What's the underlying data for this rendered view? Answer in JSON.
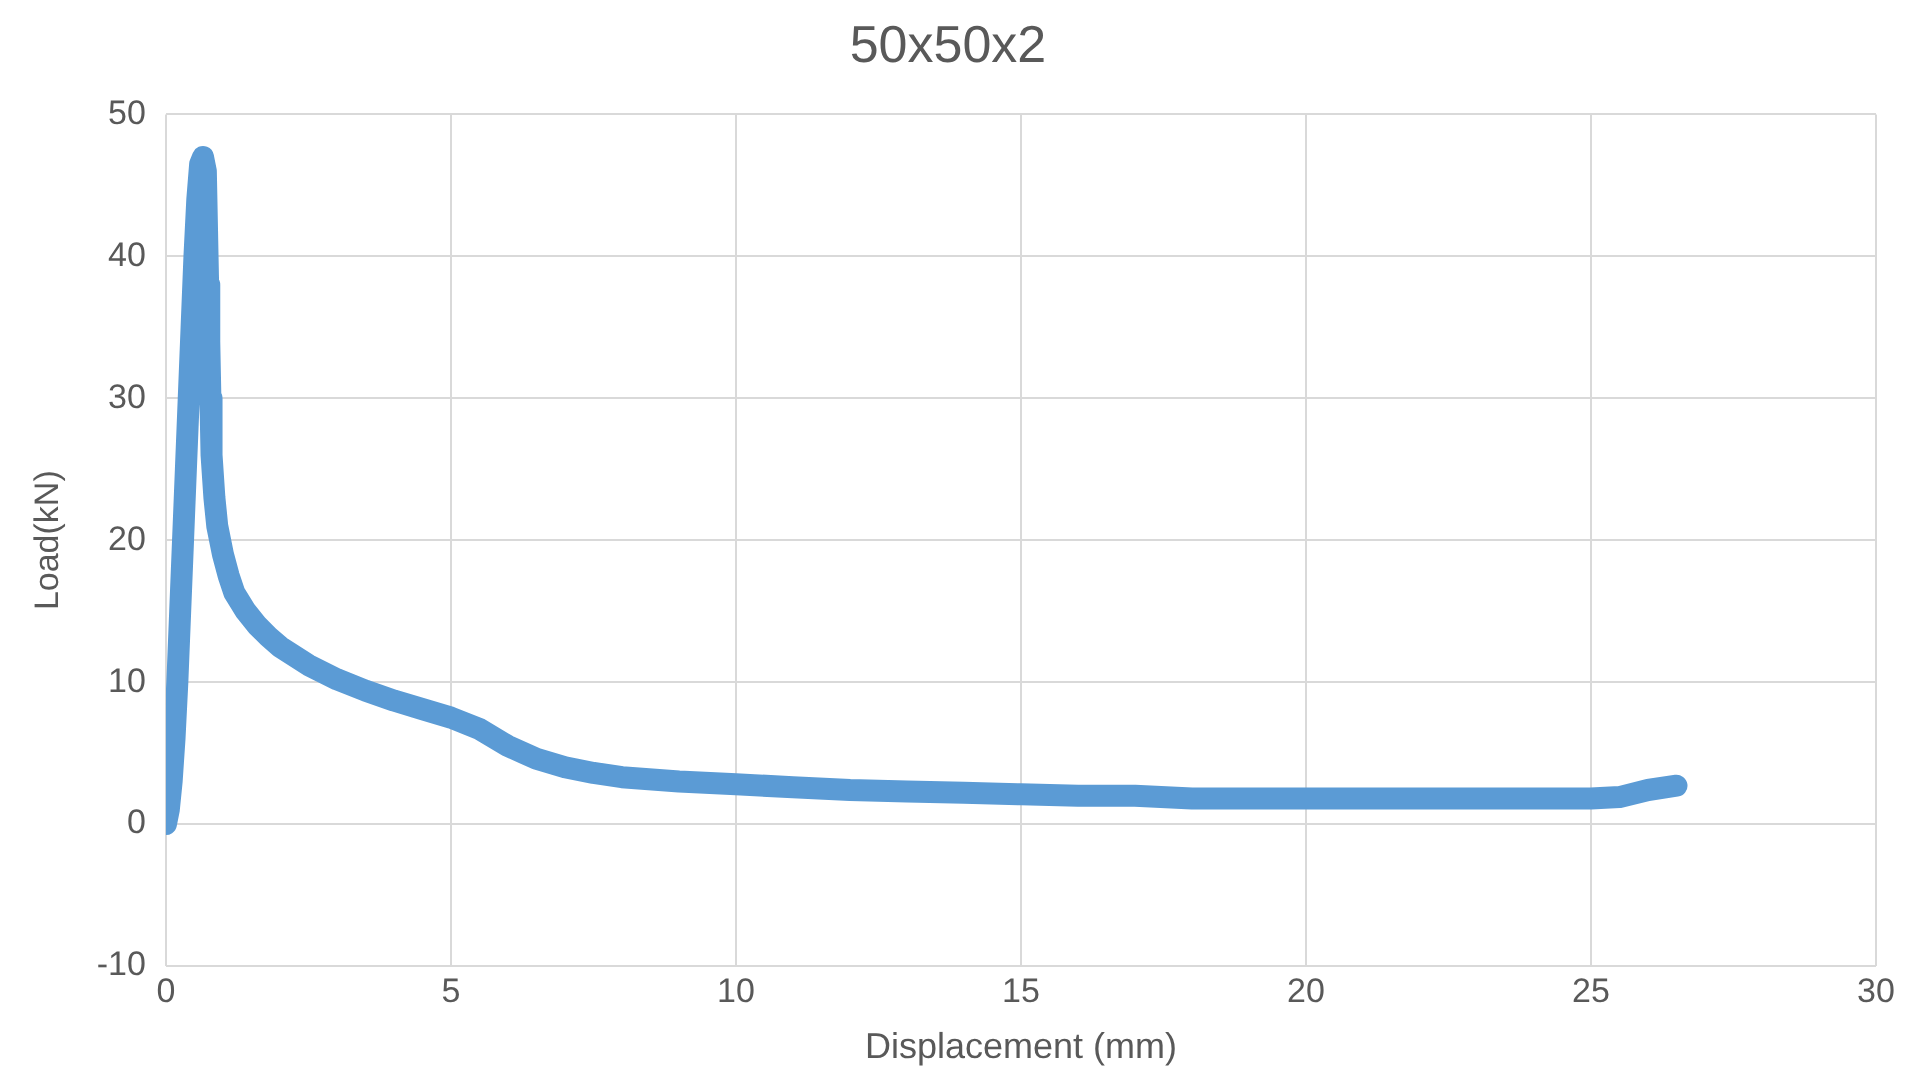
{
  "chart_data": {
    "type": "line",
    "title": "50x50x2",
    "xlabel": "Displacement (mm)",
    "ylabel": "Load(kN)",
    "xlim": [
      0,
      30
    ],
    "xticks": [
      0,
      5,
      10,
      15,
      20,
      25,
      30
    ],
    "ylim": [
      -10,
      50
    ],
    "yticks": [
      -10,
      0,
      10,
      20,
      30,
      40,
      50
    ],
    "grid": true,
    "marker": "none",
    "line_style": "solid",
    "legend": false,
    "series": [
      {
        "color": "#5b9bd5",
        "x": [
          0,
          0.05,
          0.1,
          0.15,
          0.2,
          0.25,
          0.3,
          0.35,
          0.4,
          0.45,
          0.5,
          0.55,
          0.6,
          0.65,
          0.7,
          0.72,
          0.74,
          0.76,
          0.78,
          0.8,
          0.85,
          0.9,
          1.0,
          1.1,
          1.2,
          1.4,
          1.6,
          1.8,
          2,
          2.5,
          3,
          3.5,
          4,
          4.5,
          5,
          5.5,
          6,
          6.5,
          7,
          7.5,
          8,
          9,
          10,
          11,
          12,
          13,
          14,
          15,
          16,
          17,
          18,
          19,
          20,
          21,
          22,
          23,
          24,
          25,
          25.5,
          26,
          26.5
        ],
        "values": [
          0,
          1,
          3,
          6,
          10,
          15,
          20,
          25,
          30,
          35,
          40,
          44,
          46.5,
          47,
          46,
          42,
          38,
          34,
          30,
          26,
          23,
          21,
          19,
          17.5,
          16.3,
          15,
          14,
          13.2,
          12.5,
          11.2,
          10.2,
          9.4,
          8.7,
          8.1,
          7.5,
          6.7,
          5.5,
          4.6,
          4,
          3.6,
          3.3,
          3,
          2.8,
          2.6,
          2.4,
          2.3,
          2.2,
          2.1,
          2,
          2,
          1.8,
          1.8,
          1.8,
          1.8,
          1.8,
          1.8,
          1.8,
          1.8,
          1.9,
          2.4,
          2.7
        ]
      }
    ]
  }
}
